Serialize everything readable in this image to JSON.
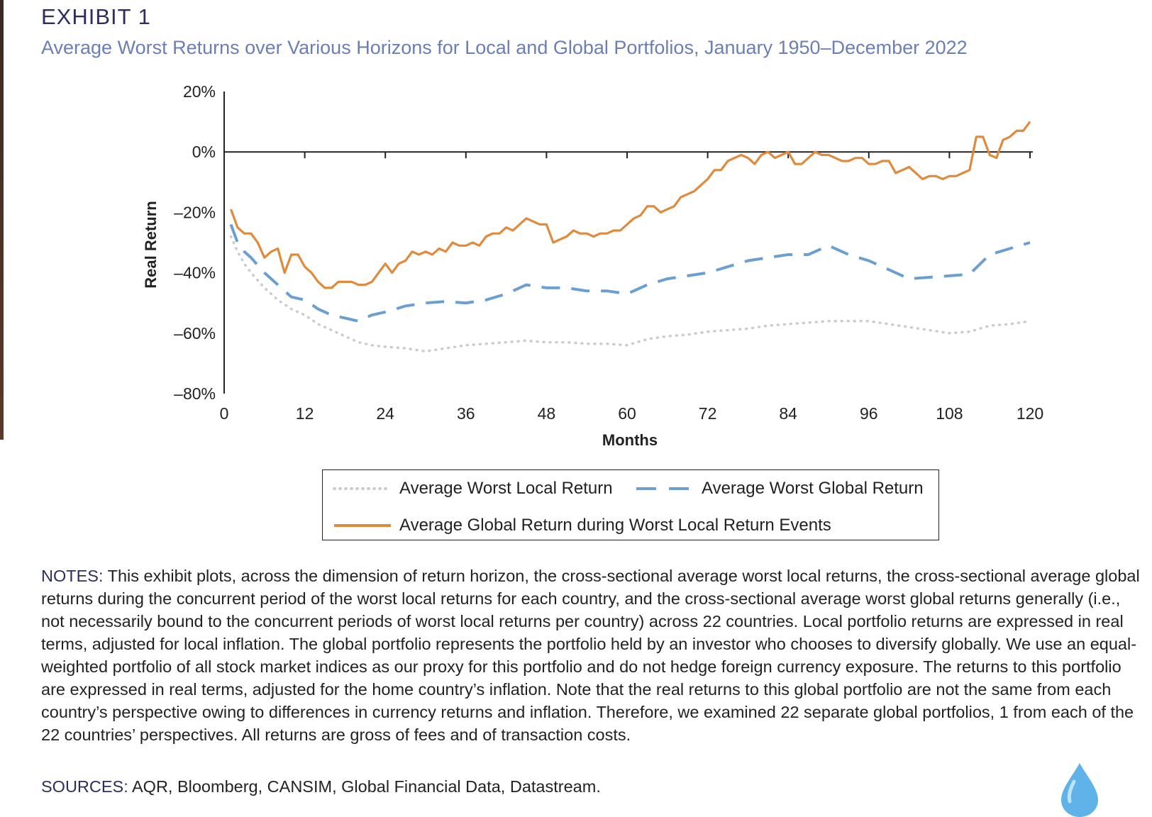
{
  "header": {
    "exhibit": "EXHIBIT 1",
    "title": "Average Worst Returns over Various Horizons for Local and Global Portfolios, January 1950–December 2022"
  },
  "chart_data": {
    "type": "line",
    "xlabel": "Months",
    "ylabel": "Real Return",
    "xlim": [
      0,
      120
    ],
    "ylim": [
      -80,
      20
    ],
    "x_ticks": [
      "0",
      "12",
      "24",
      "36",
      "48",
      "60",
      "72",
      "84",
      "96",
      "108",
      "120"
    ],
    "y_ticks": [
      "20%",
      "0%",
      "–20%",
      "–40%",
      "–60%",
      "–80%"
    ],
    "y_tick_values": [
      20,
      0,
      -20,
      -40,
      -60,
      -80
    ],
    "legend_position": "bottom",
    "series": [
      {
        "name": "Average Worst Local Return",
        "color": "#c9cdd2",
        "style": "dotted",
        "x": [
          1,
          2,
          3,
          4,
          6,
          8,
          10,
          12,
          14,
          16,
          18,
          20,
          22,
          24,
          27,
          30,
          33,
          36,
          39,
          42,
          45,
          48,
          51,
          54,
          57,
          60,
          63,
          66,
          69,
          72,
          75,
          78,
          81,
          84,
          87,
          90,
          93,
          96,
          99,
          102,
          105,
          108,
          111,
          114,
          117,
          120
        ],
        "values": [
          -28,
          -33,
          -37,
          -40,
          -45,
          -49,
          -52,
          -54,
          -57,
          -59,
          -61,
          -63,
          -64,
          -64.5,
          -65,
          -66,
          -65,
          -64,
          -63.5,
          -63,
          -62.5,
          -63,
          -63,
          -63.5,
          -63.5,
          -64,
          -62,
          -61,
          -60.5,
          -59.5,
          -59,
          -58.5,
          -57.5,
          -57,
          -56.5,
          -56,
          -56,
          -56,
          -57,
          -58,
          -59,
          -60,
          -59.5,
          -57.5,
          -57,
          -56
        ]
      },
      {
        "name": "Average Worst Global Return",
        "color": "#6b9fd2",
        "style": "dashed",
        "x": [
          1,
          2,
          3,
          4,
          6,
          8,
          10,
          12,
          14,
          16,
          18,
          20,
          22,
          24,
          27,
          30,
          33,
          36,
          39,
          42,
          45,
          48,
          51,
          54,
          57,
          60,
          63,
          66,
          69,
          72,
          75,
          78,
          81,
          84,
          87,
          90,
          93,
          96,
          99,
          102,
          105,
          108,
          111,
          114,
          117,
          120
        ],
        "values": [
          -24,
          -30,
          -33,
          -35,
          -40,
          -44,
          -48,
          -49,
          -52,
          -54,
          -55,
          -56,
          -54,
          -53,
          -51,
          -50,
          -49.5,
          -50,
          -49,
          -47,
          -44,
          -45,
          -45,
          -46,
          -46,
          -47,
          -44,
          -42,
          -41,
          -40,
          -38,
          -36,
          -35,
          -34,
          -34,
          -31,
          -34,
          -36,
          -39,
          -42,
          -41.5,
          -41,
          -40.5,
          -34,
          -32,
          -30
        ]
      },
      {
        "name": "Average Global Return during Worst Local Return Events",
        "color": "#e08a3c",
        "style": "solid",
        "x": [
          1,
          2,
          3,
          4,
          5,
          6,
          7,
          8,
          9,
          10,
          11,
          12,
          13,
          14,
          15,
          16,
          17,
          18,
          19,
          20,
          21,
          22,
          23,
          24,
          25,
          26,
          27,
          28,
          29,
          30,
          31,
          32,
          33,
          34,
          35,
          36,
          37,
          38,
          39,
          40,
          41,
          42,
          43,
          44,
          45,
          46,
          47,
          48,
          49,
          50,
          51,
          52,
          53,
          54,
          55,
          56,
          57,
          58,
          59,
          60,
          61,
          62,
          63,
          64,
          65,
          66,
          67,
          68,
          69,
          70,
          71,
          72,
          73,
          74,
          75,
          76,
          77,
          78,
          79,
          80,
          81,
          82,
          83,
          84,
          85,
          86,
          87,
          88,
          89,
          90,
          91,
          92,
          93,
          94,
          95,
          96,
          97,
          98,
          99,
          100,
          101,
          102,
          103,
          104,
          105,
          106,
          107,
          108,
          109,
          110,
          111,
          112,
          113,
          114,
          115,
          116,
          117,
          118,
          119,
          120
        ],
        "values": [
          -19,
          -25,
          -27,
          -27,
          -30,
          -35,
          -33,
          -32,
          -40,
          -34,
          -34,
          -38,
          -40,
          -43,
          -45,
          -45,
          -43,
          -43,
          -43,
          -44,
          -44,
          -43,
          -40,
          -37,
          -40,
          -37,
          -36,
          -33,
          -34,
          -33,
          -34,
          -32,
          -33,
          -30,
          -31,
          -31,
          -30,
          -31,
          -28,
          -27,
          -27,
          -25,
          -26,
          -24,
          -22,
          -23,
          -24,
          -24,
          -30,
          -29,
          -28,
          -26,
          -27,
          -27,
          -28,
          -27,
          -27,
          -26,
          -26,
          -24,
          -22,
          -21,
          -18,
          -18,
          -20,
          -19,
          -18,
          -15,
          -14,
          -13,
          -11,
          -9,
          -6,
          -6,
          -3,
          -2,
          -1,
          -2,
          -4,
          -1,
          0,
          -2,
          -1,
          0,
          -4,
          -4,
          -2,
          0,
          -1,
          -1,
          -2,
          -3,
          -3,
          -2,
          -2,
          -4,
          -4,
          -3,
          -3,
          -7,
          -6,
          -5,
          -7,
          -9,
          -8,
          -8,
          -9,
          -8,
          -8,
          -7,
          -6,
          5,
          5,
          -1,
          -2,
          4,
          5,
          7,
          7,
          10
        ]
      }
    ]
  },
  "notes": {
    "label": "NOTES:",
    "text": "This exhibit plots, across the dimension of return horizon, the cross-sectional average worst local returns, the cross-sectional average global returns during the concurrent period of the worst local returns for each country, and the cross-sectional average worst global returns generally (i.e., not necessarily bound to the concurrent periods of worst local returns per country) across 22 countries. Local portfolio returns are expressed in real terms, adjusted for local inflation. The global portfolio represents the portfolio held by an investor who chooses to diversify globally. We use an equal-weighted portfolio of all stock market indices as our proxy for this portfolio and do not hedge foreign currency exposure. The returns to this portfolio are expressed in real terms, adjusted for the home country’s inflation. Note that the real returns to this global portfolio are not the same from each country’s perspective owing to differences in currency returns and inflation. Therefore, we examined 22 separate global portfolios, 1 from each of the 22 countries’ perspectives. All returns are gross of fees and of transaction costs."
  },
  "sources": {
    "label": "SOURCES:",
    "text": "AQR, Bloomberg, CANSIM, Global Financial Data, Datastream."
  }
}
